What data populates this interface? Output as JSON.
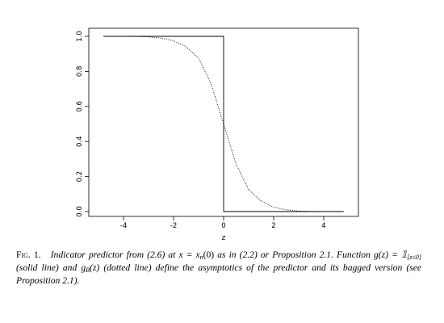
{
  "chart_data": {
    "type": "line",
    "xlabel": "z",
    "ylabel": "",
    "xlim": [
      -5,
      5
    ],
    "ylim": [
      0,
      1
    ],
    "x_ticks": [
      -4,
      -2,
      0,
      2,
      4
    ],
    "x_tick_labels": [
      "-4",
      "-2",
      "0",
      "2",
      "4"
    ],
    "y_ticks": [
      0.0,
      0.2,
      0.4,
      0.6,
      0.8,
      1.0
    ],
    "y_tick_labels": [
      "0.0",
      "0.2",
      "0.4",
      "0.6",
      "0.8",
      "1.0"
    ],
    "grid": false,
    "series": [
      {
        "style": "solid",
        "x": [
          -4.8,
          0,
          0,
          4.8
        ],
        "y": [
          1,
          1,
          0,
          0
        ]
      },
      {
        "style": "dotted",
        "x": [
          -4.8,
          -4,
          -3.5,
          -3,
          -2.5,
          -2,
          -1.5,
          -1,
          -0.5,
          0,
          0.5,
          1,
          1.5,
          2,
          2.5,
          3,
          3.5,
          4,
          4.8
        ],
        "y": [
          1.0,
          1.0,
          0.999,
          0.997,
          0.99,
          0.975,
          0.94,
          0.875,
          0.73,
          0.5,
          0.27,
          0.125,
          0.06,
          0.025,
          0.01,
          0.003,
          0.001,
          0.0,
          0.0
        ]
      }
    ]
  },
  "caption": {
    "fig_label": "Fig. 1.",
    "part1": "Indicator predictor from (2.6) at",
    "eq1": "x = x",
    "eq1_sub": "n",
    "eq1_tail": "(0)",
    "part2": "as in (2.2) or Proposition 2.1. Function",
    "eq2": "g(z) = 𝟙",
    "eq2_sub": "[z≤0]",
    "part3": "(solid line) and",
    "eq3": "g",
    "eq3_sub": "B",
    "eq3_tail": "(z)",
    "part4": "(dotted line) define the asymptotics of the predictor and its bagged version (see Proposition 2.1)."
  }
}
